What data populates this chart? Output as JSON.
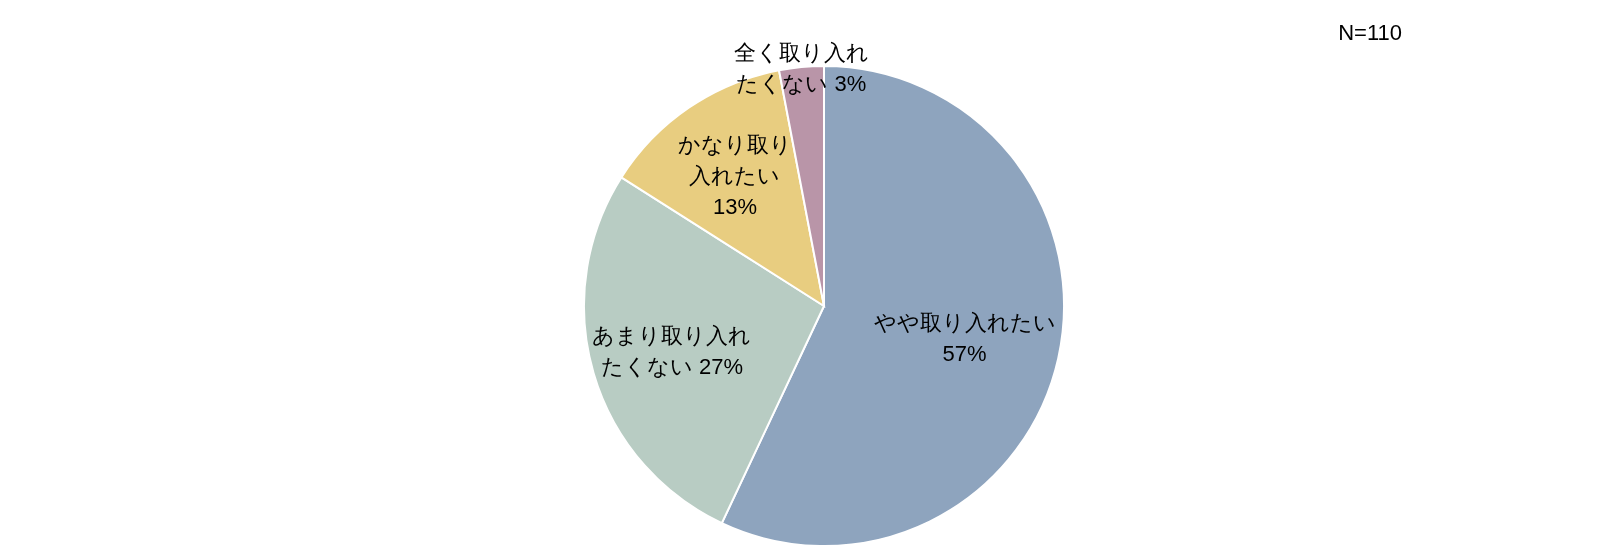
{
  "chart_data": {
    "type": "pie",
    "categories": [
      "やや取り入れたい",
      "あまり取り入れたくない",
      "かなり取り入れたい",
      "全く取り入れたくない"
    ],
    "values": [
      57,
      27,
      13,
      3
    ],
    "colors": [
      "#8ea4be",
      "#b8ccc3",
      "#e8cd80",
      "#b995a8"
    ],
    "value_labels": [
      "57%",
      "27%",
      "13%",
      "3%"
    ],
    "annotations": [
      "N=110"
    ]
  }
}
